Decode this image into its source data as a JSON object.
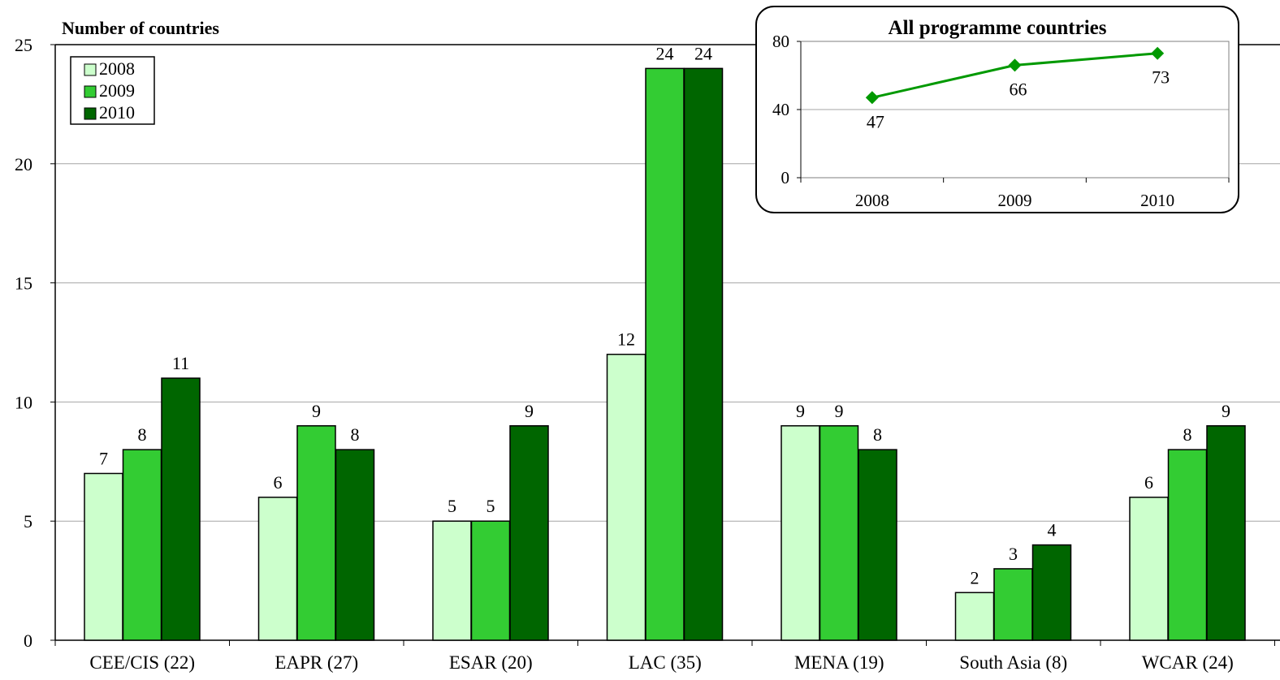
{
  "chart_data": [
    {
      "type": "bar",
      "title": "",
      "ylabel": "Number of countries",
      "xlabel": "",
      "ylim": [
        0,
        25
      ],
      "yticks": [
        0,
        5,
        10,
        15,
        20,
        25
      ],
      "grid": true,
      "legend_position": "top-left",
      "categories": [
        "CEE/CIS (22)",
        "EAPR (27)",
        "ESAR (20)",
        "LAC (35)",
        "MENA (19)",
        "South Asia (8)",
        "WCAR (24)"
      ],
      "series": [
        {
          "name": "2008",
          "color": "#ccffcc",
          "values": [
            7,
            6,
            5,
            12,
            9,
            2,
            6
          ]
        },
        {
          "name": "2009",
          "color": "#33cc33",
          "values": [
            8,
            9,
            5,
            24,
            9,
            3,
            8
          ]
        },
        {
          "name": "2010",
          "color": "#006600",
          "values": [
            11,
            8,
            9,
            24,
            8,
            4,
            9
          ]
        }
      ]
    },
    {
      "type": "line",
      "title": "All programme  countries",
      "x": [
        "2008",
        "2009",
        "2010"
      ],
      "ylim": [
        0,
        80
      ],
      "yticks": [
        0,
        40,
        80
      ],
      "grid": true,
      "series": [
        {
          "color": "#009900",
          "values": [
            47,
            66,
            73
          ]
        }
      ]
    }
  ]
}
